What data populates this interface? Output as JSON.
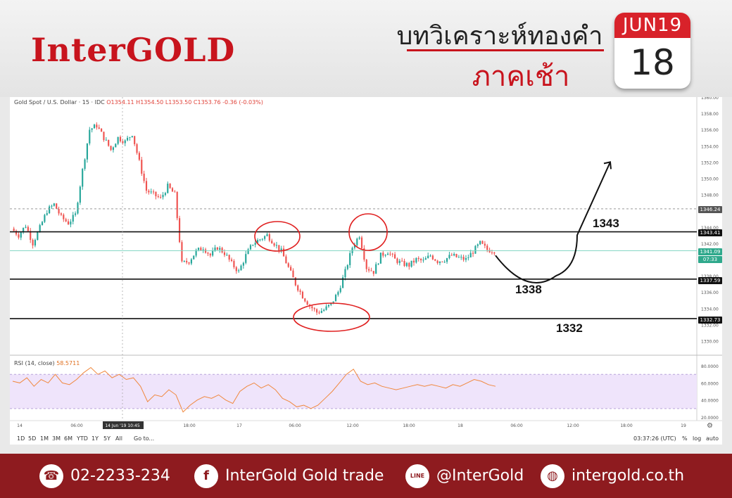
{
  "header": {
    "brand": "InterGOLD",
    "title": "บทวิเคราะห์ทองคำ",
    "subtitle": "ภาคเช้า",
    "calendar_month": "JUN19",
    "calendar_day": "18"
  },
  "chart_legend": {
    "symbol": "Gold Spot / U.S. Dollar · 15 · IDC",
    "ohlc": "O1354.11 H1354.50 L1353.50 C1353.76 -0.36 (-0.03%)"
  },
  "price_tags": {
    "resistance_tag": "1346.24",
    "line_1343": "1343.41",
    "current_price": "1341.09",
    "countdown": "07:33",
    "line_1338": "1337.59",
    "line_1332": "1332.73"
  },
  "annotations": {
    "level_1343": "1343",
    "level_1338": "1338",
    "level_1332": "1332"
  },
  "rsi": {
    "label": "RSI (14, close)",
    "value": "58.5711",
    "ticks": [
      "80.0000",
      "60.0000",
      "40.0000",
      "20.0000"
    ]
  },
  "time_axis": {
    "labels": [
      "14",
      "06:00",
      "14 Jun '19  10:45",
      "18:00",
      "17",
      "06:00",
      "12:00",
      "18:00",
      "18",
      "06:00",
      "12:00",
      "18:00",
      "19"
    ]
  },
  "toolbar": {
    "ranges": [
      "1D",
      "5D",
      "1M",
      "3M",
      "6M",
      "YTD",
      "1Y",
      "5Y",
      "All"
    ],
    "goto": "Go to...",
    "clock": "03:37:26 (UTC)",
    "percent": "%",
    "log": "log",
    "auto": "auto"
  },
  "footer": {
    "phone": "02-2233-234",
    "facebook": "InterGold Gold trade",
    "line": "@InterGold",
    "website": "intergold.co.th"
  },
  "chart_data": {
    "type": "candlestick",
    "title": "Gold Spot / U.S. Dollar · 15 · IDC",
    "ylim": [
      1329,
      1360
    ],
    "y_ticks": [
      1330,
      1332,
      1334,
      1336,
      1338,
      1340,
      1342,
      1344,
      1346,
      1348,
      1350,
      1352,
      1354,
      1356,
      1358,
      1360
    ],
    "x_tick_labels": [
      "14",
      "06:00",
      "18:00",
      "17",
      "06:00",
      "12:00",
      "18:00",
      "18",
      "06:00",
      "12:00",
      "18:00",
      "19"
    ],
    "horizontal_levels": [
      1343.41,
      1337.59,
      1332.73
    ],
    "dashed_level": 1346.24,
    "current_price": 1341.09,
    "close_path": [
      1343.8,
      1343.0,
      1344.2,
      1342.0,
      1343.9,
      1346.0,
      1346.8,
      1345.2,
      1344.5,
      1345.5,
      1351.0,
      1356.0,
      1356.5,
      1355.0,
      1353.5,
      1355.0,
      1354.5,
      1355.5,
      1352.0,
      1348.5,
      1348.0,
      1347.5,
      1349.0,
      1348.0,
      1339.5,
      1339.8,
      1341.0,
      1341.5,
      1340.5,
      1341.5,
      1340.8,
      1339.5,
      1338.5,
      1340.5,
      1342.0,
      1342.5,
      1343.0,
      1342.0,
      1341.0,
      1339.0,
      1337.0,
      1335.5,
      1334.3,
      1333.5,
      1333.8,
      1334.5,
      1336.0,
      1338.5,
      1341.5,
      1343.0,
      1339.0,
      1338.5,
      1340.5,
      1341.0,
      1340.0,
      1339.5,
      1339.3,
      1340.0,
      1339.8,
      1340.5,
      1339.8,
      1340.0,
      1340.5,
      1340.2,
      1340.0,
      1341.0,
      1342.0,
      1341.2,
      1341.09
    ],
    "rsi_path": [
      62,
      60,
      66,
      56,
      64,
      60,
      70,
      60,
      58,
      64,
      72,
      78,
      70,
      74,
      66,
      70,
      64,
      66,
      56,
      38,
      46,
      44,
      52,
      46,
      26,
      34,
      40,
      44,
      42,
      46,
      40,
      36,
      50,
      56,
      60,
      54,
      58,
      52,
      42,
      38,
      32,
      34,
      30,
      34,
      42,
      50,
      60,
      70,
      76,
      62,
      58,
      60,
      56,
      54,
      52,
      54,
      56,
      58,
      56,
      58,
      56,
      54,
      58,
      56,
      60,
      64,
      62,
      58,
      56
    ],
    "rsi_ylim": [
      20,
      85
    ],
    "rsi_band": [
      30,
      70
    ],
    "projection": [
      1340.5,
      1337.0,
      1338.0,
      1343.0,
      1349.0,
      1352.0
    ]
  }
}
